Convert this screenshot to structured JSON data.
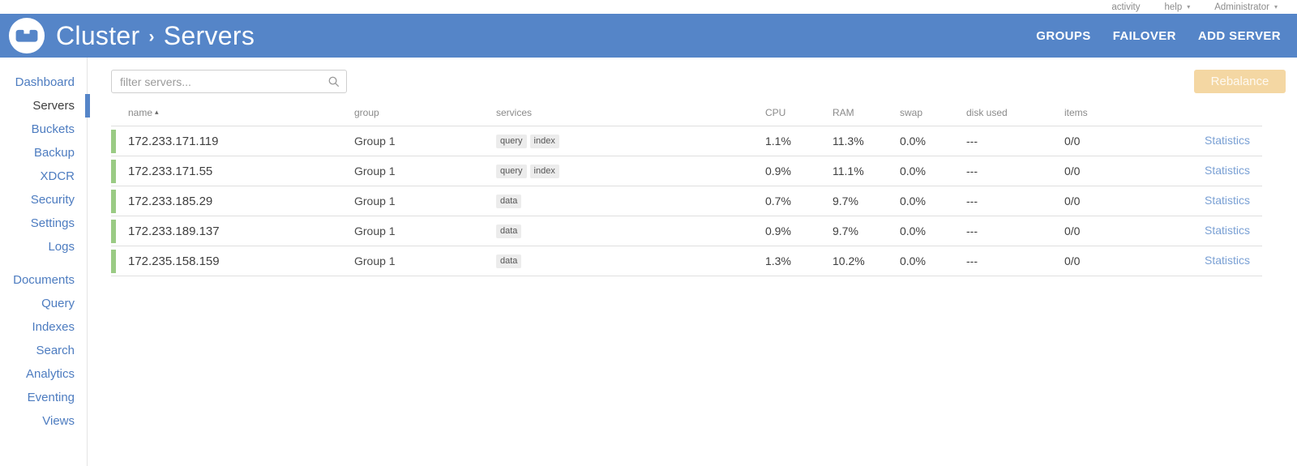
{
  "colors": {
    "header_blue": "#5585c8",
    "sidebar_link_blue": "#4d7cc0",
    "statistics_link_blue": "#7aa0d4",
    "health_green": "#9acb84",
    "rebalance_disabled_bg": "#f4d7a3",
    "service_tag_bg": "#ececec"
  },
  "icons": {
    "caret": "▾"
  },
  "utility_bar": {
    "activity": "activity",
    "help": "help",
    "user": "Administrator"
  },
  "header": {
    "breadcrumb": {
      "parent": "Cluster",
      "separator": "›",
      "current": "Servers"
    },
    "nav": [
      "GROUPS",
      "FAILOVER",
      "ADD SERVER"
    ]
  },
  "sidebar": {
    "primary": [
      {
        "label": "Dashboard",
        "active": false
      },
      {
        "label": "Servers",
        "active": true
      },
      {
        "label": "Buckets",
        "active": false
      },
      {
        "label": "Backup",
        "active": false
      },
      {
        "label": "XDCR",
        "active": false
      },
      {
        "label": "Security",
        "active": false
      },
      {
        "label": "Settings",
        "active": false
      },
      {
        "label": "Logs",
        "active": false
      }
    ],
    "secondary": [
      {
        "label": "Documents",
        "active": false
      },
      {
        "label": "Query",
        "active": false
      },
      {
        "label": "Indexes",
        "active": false
      },
      {
        "label": "Search",
        "active": false
      },
      {
        "label": "Analytics",
        "active": false
      },
      {
        "label": "Eventing",
        "active": false
      },
      {
        "label": "Views",
        "active": false
      }
    ]
  },
  "toolbar": {
    "filter_placeholder": "filter servers...",
    "rebalance_label": "Rebalance"
  },
  "table": {
    "headers": {
      "name": "name",
      "group": "group",
      "services": "services",
      "cpu": "CPU",
      "ram": "RAM",
      "swap": "swap",
      "disk_used": "disk used",
      "items": "items"
    },
    "sort": {
      "column": "name",
      "direction": "asc",
      "indicator": "▴"
    },
    "rows": [
      {
        "name": "172.233.171.119",
        "group": "Group 1",
        "services": [
          "query",
          "index"
        ],
        "cpu": "1.1%",
        "ram": "11.3%",
        "swap": "0.0%",
        "disk_used": "---",
        "items": "0/0",
        "action": "Statistics"
      },
      {
        "name": "172.233.171.55",
        "group": "Group 1",
        "services": [
          "query",
          "index"
        ],
        "cpu": "0.9%",
        "ram": "11.1%",
        "swap": "0.0%",
        "disk_used": "---",
        "items": "0/0",
        "action": "Statistics"
      },
      {
        "name": "172.233.185.29",
        "group": "Group 1",
        "services": [
          "data"
        ],
        "cpu": "0.7%",
        "ram": "9.7%",
        "swap": "0.0%",
        "disk_used": "---",
        "items": "0/0",
        "action": "Statistics"
      },
      {
        "name": "172.233.189.137",
        "group": "Group 1",
        "services": [
          "data"
        ],
        "cpu": "0.9%",
        "ram": "9.7%",
        "swap": "0.0%",
        "disk_used": "---",
        "items": "0/0",
        "action": "Statistics"
      },
      {
        "name": "172.235.158.159",
        "group": "Group 1",
        "services": [
          "data"
        ],
        "cpu": "1.3%",
        "ram": "10.2%",
        "swap": "0.0%",
        "disk_used": "---",
        "items": "0/0",
        "action": "Statistics"
      }
    ]
  }
}
